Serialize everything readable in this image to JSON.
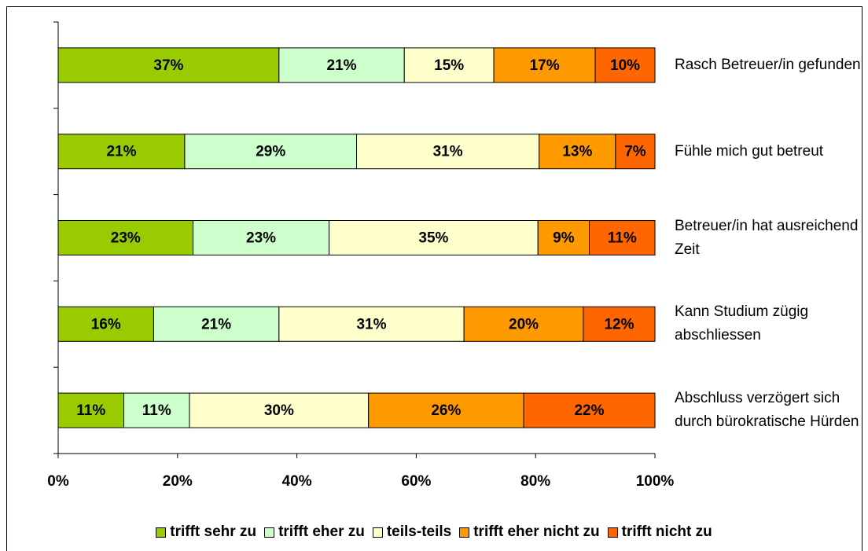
{
  "chart_data": {
    "type": "stacked_barh",
    "categories": [
      "Rasch Betreuer/in gefunden",
      "Fühle mich gut betreut",
      "Betreuer/in hat ausreichend Zeit",
      "Kann Studium zügig abschliessen",
      "Abschluss verzögert sich durch bürokratische Hürden"
    ],
    "series": [
      {
        "name": "trifft sehr zu",
        "color": "#99cc00",
        "values": [
          37,
          21.2,
          22.6,
          16,
          11
        ],
        "value_labels": [
          "37%",
          "21%",
          "23%",
          "16%",
          "11%"
        ]
      },
      {
        "name": "trifft eher zu",
        "color": "#ccffcc",
        "values": [
          21,
          28.8,
          22.8,
          21,
          11
        ],
        "value_labels": [
          "21%",
          "29%",
          "23%",
          "21%",
          "11%"
        ]
      },
      {
        "name": "teils-teils",
        "color": "#ffffcc",
        "values": [
          15,
          30.6,
          35.0,
          31,
          30
        ],
        "value_labels": [
          "15%",
          "31%",
          "35%",
          "31%",
          "30%"
        ]
      },
      {
        "name": "trifft eher nicht zu",
        "color": "#ff9900",
        "values": [
          17,
          12.8,
          8.6,
          20,
          26
        ],
        "value_labels": [
          "17%",
          "13%",
          "9%",
          "20%",
          "26%"
        ]
      },
      {
        "name": "trifft nicht zu",
        "color": "#ff6600",
        "values": [
          10,
          6.6,
          11.0,
          12,
          22
        ],
        "value_labels": [
          "10%",
          "7%",
          "11%",
          "12%",
          "22%"
        ]
      }
    ],
    "xlim": [
      0,
      100
    ],
    "xticks": [
      {
        "value": 0,
        "label": "0%"
      },
      {
        "value": 20,
        "label": "20%"
      },
      {
        "value": 40,
        "label": "40%"
      },
      {
        "value": 60,
        "label": "60%"
      },
      {
        "value": 80,
        "label": "80%"
      },
      {
        "value": 100,
        "label": "100%"
      }
    ],
    "legend": "bottom",
    "grid": false
  }
}
